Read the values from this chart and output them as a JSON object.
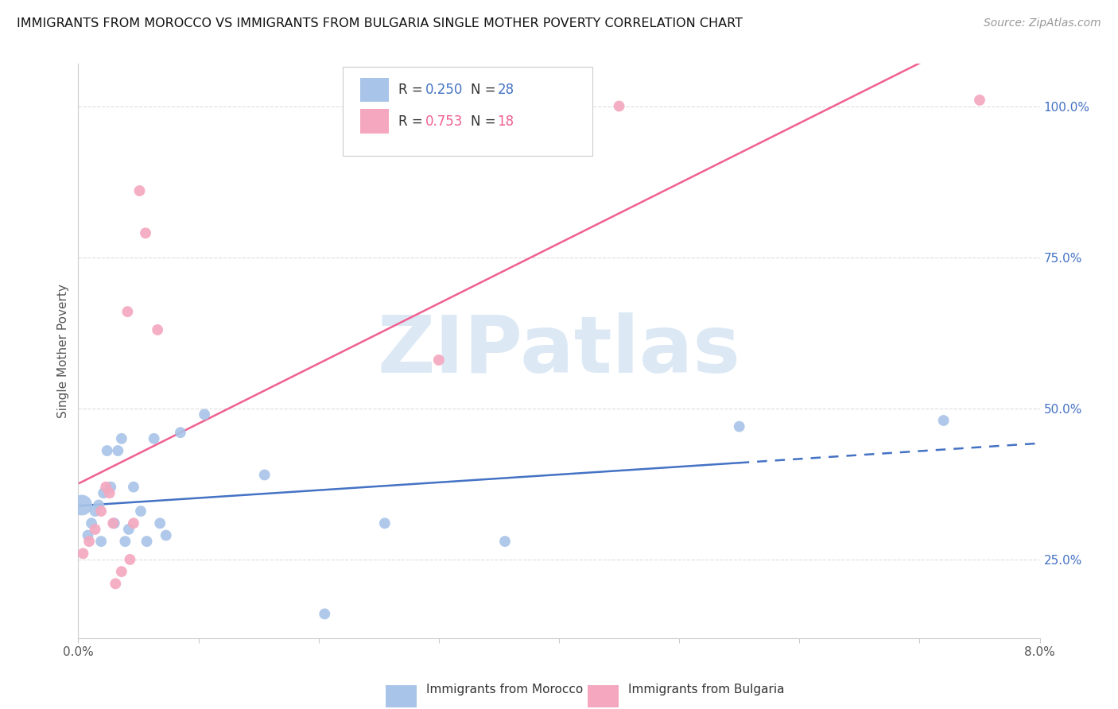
{
  "title": "IMMIGRANTS FROM MOROCCO VS IMMIGRANTS FROM BULGARIA SINGLE MOTHER POVERTY CORRELATION CHART",
  "source": "Source: ZipAtlas.com",
  "ylabel": "Single Mother Poverty",
  "legend_morocco": "Immigrants from Morocco",
  "legend_bulgaria": "Immigrants from Bulgaria",
  "morocco_R": "0.250",
  "morocco_N": "28",
  "bulgaria_R": "0.753",
  "bulgaria_N": "18",
  "morocco_color": "#a8c4e8",
  "bulgaria_color": "#f4a7bf",
  "morocco_line_color": "#4472c4",
  "bulgaria_line_color": "#f06090",
  "right_ytick_color": "#4472c4",
  "right_yticks": [
    25.0,
    50.0,
    75.0,
    100.0
  ],
  "xlim": [
    0.0,
    8.0
  ],
  "ylim": [
    12.0,
    107.0
  ],
  "morocco_x": [
    0.03,
    0.08,
    0.11,
    0.14,
    0.17,
    0.19,
    0.21,
    0.24,
    0.27,
    0.3,
    0.33,
    0.36,
    0.39,
    0.42,
    0.46,
    0.52,
    0.57,
    0.63,
    0.68,
    0.73,
    0.85,
    1.05,
    1.55,
    2.05,
    2.55,
    3.55,
    5.5,
    7.2
  ],
  "morocco_y": [
    34,
    29,
    31,
    33,
    34,
    28,
    36,
    43,
    37,
    31,
    43,
    45,
    28,
    30,
    37,
    33,
    28,
    45,
    31,
    29,
    46,
    49,
    39,
    16,
    31,
    28,
    47,
    48
  ],
  "morocco_sizes": [
    350,
    100,
    100,
    100,
    100,
    100,
    100,
    100,
    100,
    100,
    100,
    100,
    100,
    100,
    100,
    100,
    100,
    100,
    100,
    100,
    100,
    100,
    100,
    100,
    100,
    100,
    100,
    100
  ],
  "bulgaria_x": [
    0.04,
    0.09,
    0.14,
    0.19,
    0.23,
    0.26,
    0.29,
    0.31,
    0.36,
    0.41,
    0.43,
    0.46,
    0.51,
    0.56,
    0.66,
    3.0,
    4.5,
    7.5
  ],
  "bulgaria_y": [
    26,
    28,
    30,
    33,
    37,
    36,
    31,
    21,
    23,
    66,
    25,
    31,
    86,
    79,
    63,
    58,
    100,
    101
  ],
  "bulgaria_sizes": [
    100,
    100,
    100,
    100,
    100,
    100,
    100,
    100,
    100,
    100,
    100,
    100,
    100,
    100,
    100,
    100,
    100,
    100
  ],
  "morocco_trend_split_x": 5.5,
  "grid_color": "#dddddd",
  "watermark_text": "ZIPatlas",
  "watermark_color": "#dce9f5",
  "spine_color": "#cccccc"
}
